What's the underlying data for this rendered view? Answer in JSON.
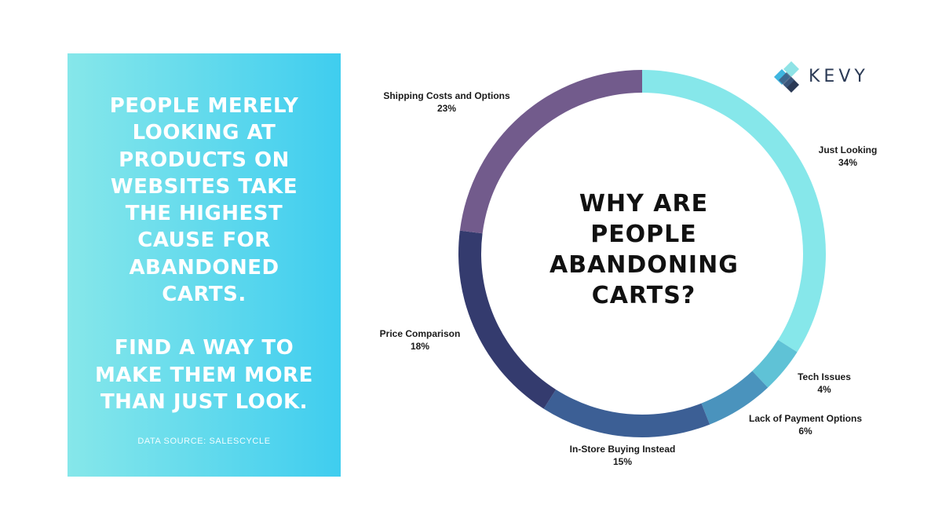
{
  "panel": {
    "headline_lines": [
      "PEOPLE MERELY",
      "LOOKING AT",
      "PRODUCTS ON",
      "WEBSITES TAKE",
      "THE HIGHEST",
      "CAUSE FOR",
      "ABANDONED",
      "CARTS."
    ],
    "cta_lines": [
      "FIND A WAY TO",
      "MAKE THEM MORE",
      "THAN JUST LOOK."
    ],
    "source": "DATA SOURCE: SALESCYCLE"
  },
  "logo": {
    "text": "KEVY",
    "icon": "kevy-diamond-logo-icon"
  },
  "chart_data": {
    "type": "pie",
    "variant": "donut",
    "title_lines": [
      "WHY ARE",
      "PEOPLE",
      "ABANDONING",
      "CARTS?"
    ],
    "unit": "%",
    "slices": [
      {
        "label": "Just Looking",
        "value": 34,
        "color": "#86e7ea"
      },
      {
        "label": "Tech Issues",
        "value": 4,
        "color": "#5fc2d6"
      },
      {
        "label": "Lack of Payment Options",
        "value": 6,
        "color": "#4a93bd"
      },
      {
        "label": "In-Store Buying Instead",
        "value": 15,
        "color": "#3c5f95"
      },
      {
        "label": "Price Comparison",
        "value": 18,
        "color": "#343b6e"
      },
      {
        "label": "Shipping Costs and Options",
        "value": 23,
        "color": "#725b8c"
      }
    ]
  }
}
